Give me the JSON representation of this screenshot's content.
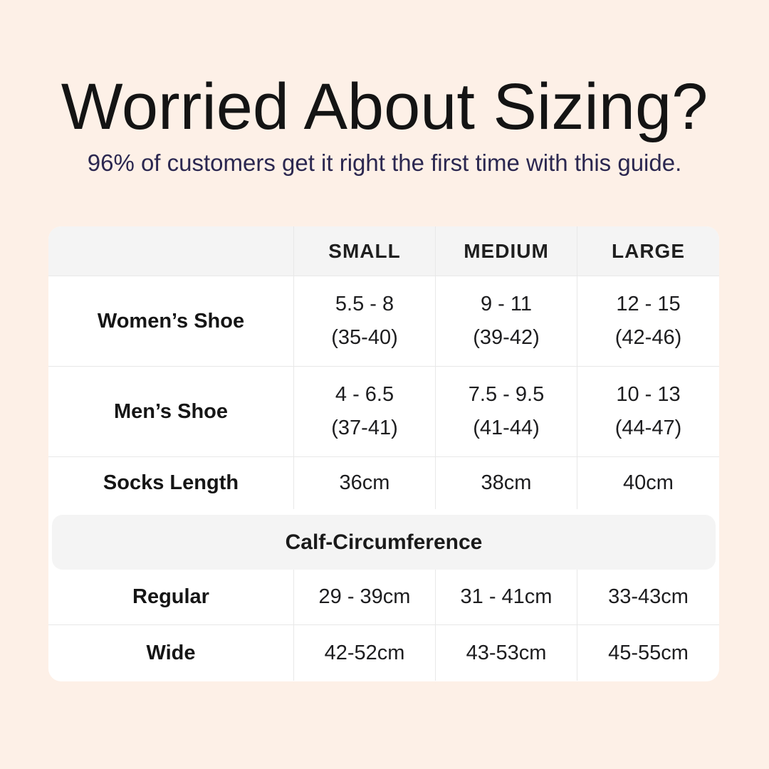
{
  "page": {
    "background_color": "#fdf0e7",
    "card_color": "#ffffff",
    "band_color": "#f4f4f4",
    "divider_color": "#e8e8e8",
    "title_color": "#141414",
    "subtitle_color": "#2b2750"
  },
  "header": {
    "title": "Worried About Sizing?",
    "subtitle": "96% of customers get it right the first time with this guide."
  },
  "table": {
    "columns": {
      "small": "SMALL",
      "medium": "MEDIUM",
      "large": "LARGE"
    },
    "womens_shoe": {
      "label": "Women’s Shoe",
      "small_line1": "5.5 - 8",
      "small_line2": "(35-40)",
      "medium_line1": "9 - 11",
      "medium_line2": "(39-42)",
      "large_line1": "12 - 15",
      "large_line2": "(42-46)"
    },
    "mens_shoe": {
      "label": "Men’s Shoe",
      "small_line1": "4 - 6.5",
      "small_line2": "(37-41)",
      "medium_line1": "7.5 - 9.5",
      "medium_line2": "(41-44)",
      "large_line1": "10 - 13",
      "large_line2": "(44-47)"
    },
    "socks_length": {
      "label": "Socks Length",
      "small": "36cm",
      "medium": "38cm",
      "large": "40cm"
    },
    "section_header": "Calf-Circumference",
    "calf_regular": {
      "label": "Regular",
      "small": "29 - 39cm",
      "medium": "31 - 41cm",
      "large": "33-43cm"
    },
    "calf_wide": {
      "label": "Wide",
      "small": "42-52cm",
      "medium": "43-53cm",
      "large": "45-55cm"
    }
  }
}
